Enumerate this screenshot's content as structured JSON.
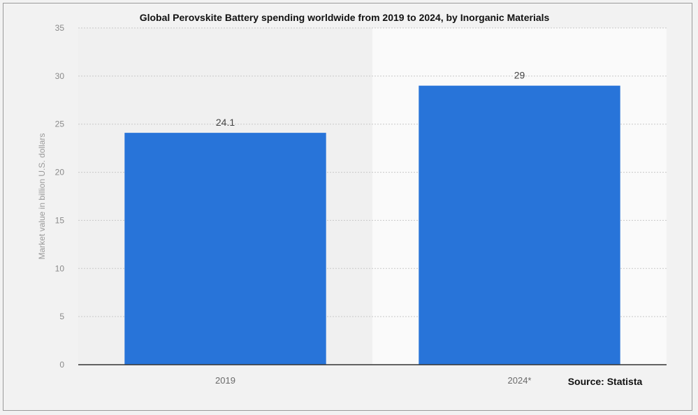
{
  "chart_data": {
    "type": "bar",
    "title": "Global Perovskite Battery spending worldwide from 2019 to 2024, by Inorganic Materials",
    "xlabel": "",
    "ylabel": "Market value in billion U.S. dollars",
    "categories": [
      "2019",
      "2024*"
    ],
    "values": [
      24.1,
      29
    ],
    "data_labels": [
      "24.1",
      "29"
    ],
    "ylim": [
      0,
      35
    ],
    "yticks": [
      0,
      5,
      10,
      15,
      20,
      25,
      30,
      35
    ],
    "grid": true,
    "legend": "none",
    "bar_color": "#2874d9",
    "source": "Source: Statista"
  }
}
